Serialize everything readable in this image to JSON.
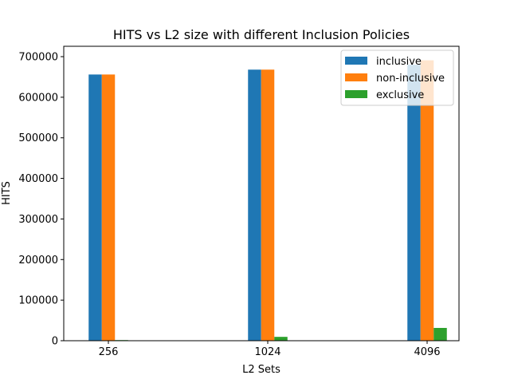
{
  "chart_data": {
    "type": "bar",
    "title": "HITS vs L2 size with different Inclusion Policies",
    "xlabel": "L2 Sets",
    "ylabel": "HITS",
    "categories": [
      "256",
      "1024",
      "4096"
    ],
    "series": [
      {
        "name": "inclusive",
        "color": "#1f77b4",
        "values": [
          656000,
          668000,
          680000
        ]
      },
      {
        "name": "non-inclusive",
        "color": "#ff7f0e",
        "values": [
          656000,
          668000,
          691000
        ]
      },
      {
        "name": "exclusive",
        "color": "#2ca02c",
        "values": [
          1500,
          9500,
          31500
        ]
      }
    ],
    "ylim": [
      0,
      700000
    ],
    "yticks": [
      0,
      100000,
      200000,
      300000,
      400000,
      500000,
      600000,
      700000
    ],
    "ytick_labels": [
      "0",
      "100000",
      "200000",
      "300000",
      "400000",
      "500000",
      "600000",
      "700000"
    ],
    "legend_position": "top-right",
    "grid": false
  }
}
